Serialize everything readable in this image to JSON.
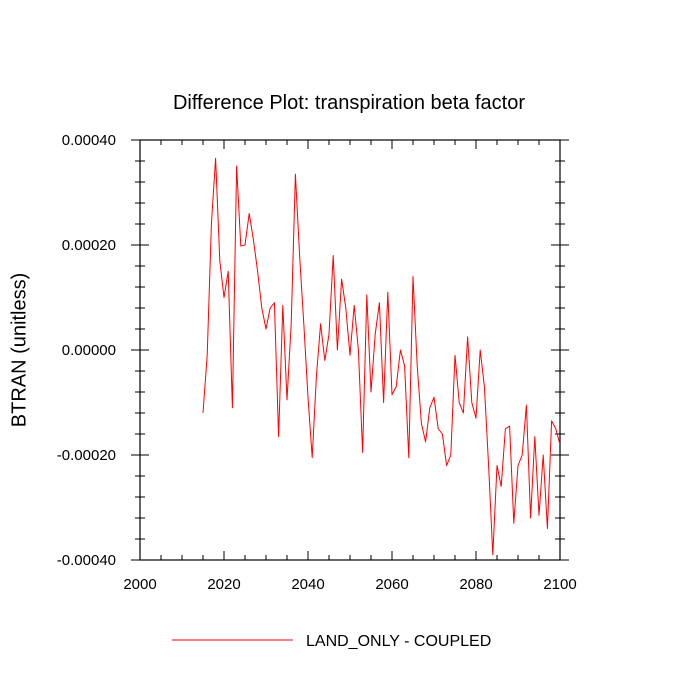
{
  "chart_data": {
    "type": "line",
    "title": "Difference Plot: transpiration beta factor",
    "xlabel": "",
    "ylabel": "BTRAN  (unitless)",
    "xlim": [
      2000,
      2100
    ],
    "ylim": [
      -0.0004,
      0.0004
    ],
    "x_ticks": [
      2000,
      2020,
      2040,
      2060,
      2080,
      2100
    ],
    "x_tick_labels": [
      "2000",
      "2020",
      "2040",
      "2060",
      "2080",
      "2100"
    ],
    "y_ticks": [
      -0.0004,
      -0.0002,
      0.0,
      0.0002,
      0.0004
    ],
    "y_tick_labels": [
      "-0.00040",
      "-0.00020",
      "0.00000",
      "0.00020",
      "0.00040"
    ],
    "grid": false,
    "legend_position": "bottom",
    "series": [
      {
        "name": "LAND_ONLY - COUPLED",
        "color": "#ff0000",
        "x": [
          2015,
          2016,
          2017,
          2018,
          2019,
          2020,
          2021,
          2022,
          2023,
          2024,
          2025,
          2026,
          2027,
          2028,
          2029,
          2030,
          2031,
          2032,
          2033,
          2034,
          2035,
          2036,
          2037,
          2038,
          2039,
          2040,
          2041,
          2042,
          2043,
          2044,
          2045,
          2046,
          2047,
          2048,
          2049,
          2050,
          2051,
          2052,
          2053,
          2054,
          2055,
          2056,
          2057,
          2058,
          2059,
          2060,
          2061,
          2062,
          2063,
          2064,
          2065,
          2066,
          2067,
          2068,
          2069,
          2070,
          2071,
          2072,
          2073,
          2074,
          2075,
          2076,
          2077,
          2078,
          2079,
          2080,
          2081,
          2082,
          2083,
          2084,
          2085,
          2086,
          2087,
          2088,
          2089,
          2090,
          2091,
          2092,
          2093,
          2094,
          2095,
          2096,
          2097,
          2098,
          2099,
          2100
        ],
        "y": [
          -0.00012,
          -1e-05,
          0.00024,
          0.000365,
          0.00017,
          0.0001,
          0.00015,
          -0.00011,
          0.00035,
          0.000198,
          0.0002,
          0.00026,
          0.00021,
          0.00015,
          8e-05,
          4e-05,
          8e-05,
          9e-05,
          -0.000165,
          8.5e-05,
          -9.5e-05,
          5e-05,
          0.000335,
          0.00018,
          5e-05,
          -9e-05,
          -0.000205,
          -5e-05,
          5e-05,
          -2e-05,
          3e-05,
          0.00018,
          0.0,
          0.000135,
          8e-05,
          -1e-05,
          8.5e-05,
          0.0,
          -0.000195,
          0.000105,
          -8e-05,
          3e-05,
          9e-05,
          -0.0001,
          0.00011,
          -8.5e-05,
          -7e-05,
          0.0,
          -3e-05,
          -0.000205,
          0.00014,
          -3e-05,
          -0.00014,
          -0.000175,
          -0.00011,
          -9e-05,
          -0.00015,
          -0.00016,
          -0.00022,
          -0.0002,
          -1e-05,
          -0.0001,
          -0.00012,
          2.5e-05,
          -0.0001,
          -0.00013,
          0.0,
          -7e-05,
          -0.00022,
          -0.00039,
          -0.00022,
          -0.00026,
          -0.00015,
          -0.000145,
          -0.00033,
          -0.00022,
          -0.0002,
          -0.000105,
          -0.00032,
          -0.000165,
          -0.000315,
          -0.0002,
          -0.00034,
          -0.000135,
          -0.00015,
          -0.00018
        ]
      }
    ]
  }
}
